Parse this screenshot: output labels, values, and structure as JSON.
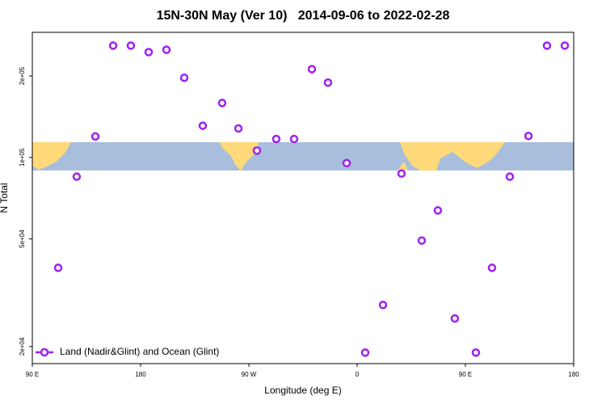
{
  "chart_data": {
    "type": "scatter",
    "title": "15N-30N May (Ver 10)   2014-09-06 to 2022-02-28",
    "x_label": "Longitude (deg E)",
    "y_label": "N Total",
    "x": [
      111.5,
      126.9,
      142.4,
      157.2,
      171.9,
      186.7,
      201.5,
      216.3,
      231.7,
      247.8,
      261.3,
      276.7,
      292.8,
      307.6,
      322.4,
      335.8,
      351.3,
      366.7,
      381.5,
      396.9,
      413.7,
      427.1,
      441.2,
      458.7,
      472.1,
      486.9,
      502.4,
      517.8,
      532.6
    ],
    "series": [
      {
        "name": "Land (Nadir&Glint) and Ocean (Glint)",
        "color": "#a020f0",
        "values": [
          39100,
          84900,
          119500,
          259000,
          259000,
          245000,
          250000,
          197000,
          131000,
          159000,
          128000,
          106000,
          117000,
          117000,
          212000,
          189000,
          95300,
          19000,
          28500,
          87200,
          49300,
          63700,
          25400,
          19000,
          39100,
          84900,
          120000,
          259000,
          259000
        ]
      }
    ],
    "xlim": [
      90,
      540
    ],
    "xticks": [
      {
        "value": 90,
        "label": "90 E"
      },
      180,
      {
        "value": 270,
        "label": "90 W"
      },
      {
        "value": 360,
        "label": "0"
      },
      {
        "value": 450,
        "label": "90 E"
      },
      {
        "value": 540,
        "label": "180"
      }
    ],
    "ylim": [
      17300,
      290000
    ],
    "yticks": [
      {
        "value": 20000,
        "label": "2e+04"
      },
      {
        "value": 50000,
        "label": "5e+04"
      },
      {
        "value": 100000,
        "label": "1e+05"
      },
      {
        "value": 200000,
        "label": "2e+05"
      }
    ],
    "log_y": true,
    "legend": "bottomleft"
  }
}
